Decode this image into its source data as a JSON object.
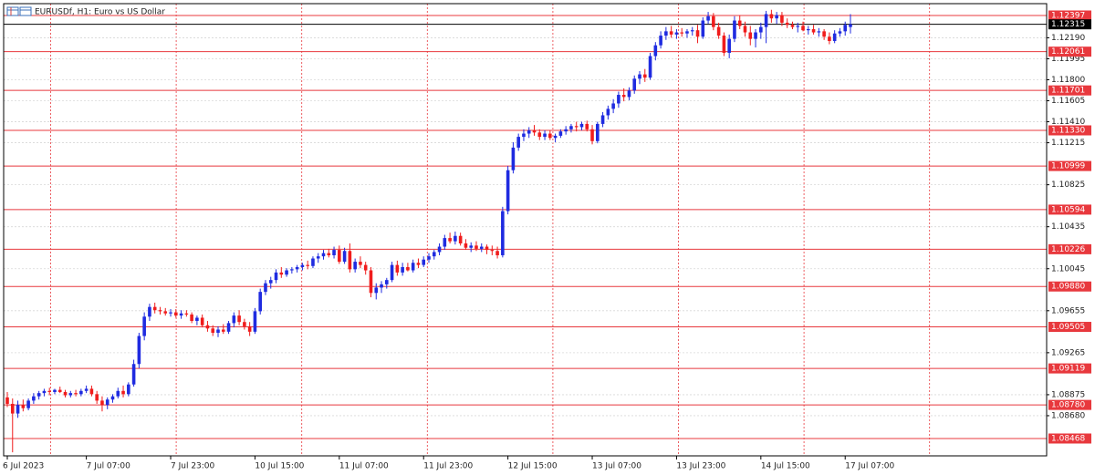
{
  "chart_data": {
    "type": "candlestick",
    "title": "EURUSDf, H1:  Euro vs US Dollar",
    "up_color": "#1f2be0",
    "down_color": "#f01c1c",
    "level_color": "#e8383d",
    "current_color": "#000000",
    "grid": true,
    "ylim": [
      1.08307,
      1.12507
    ],
    "yticks": [
      {
        "value": 1.1219,
        "label": "1.12190"
      },
      {
        "value": 1.11995,
        "label": "1.11995"
      },
      {
        "value": 1.118,
        "label": "1.11800"
      },
      {
        "value": 1.11605,
        "label": "1.11605"
      },
      {
        "value": 1.1141,
        "label": "1.11410"
      },
      {
        "value": 1.11215,
        "label": "1.11215"
      },
      {
        "value": 1.10825,
        "label": "1.10825"
      },
      {
        "value": 1.10435,
        "label": "1.10435"
      },
      {
        "value": 1.10045,
        "label": "1.10045"
      },
      {
        "value": 1.09655,
        "label": "1.09655"
      },
      {
        "value": 1.09265,
        "label": "1.09265"
      },
      {
        "value": 1.08875,
        "label": "1.08875"
      },
      {
        "value": 1.0868,
        "label": "1.08680"
      }
    ],
    "levels": [
      {
        "value": 1.12397,
        "label": "1.12397"
      },
      {
        "value": 1.12061,
        "label": "1.12061"
      },
      {
        "value": 1.11701,
        "label": "1.11701"
      },
      {
        "value": 1.1133,
        "label": "1.11330"
      },
      {
        "value": 1.10999,
        "label": "1.10999"
      },
      {
        "value": 1.10594,
        "label": "1.10594"
      },
      {
        "value": 1.10226,
        "label": "1.10226"
      },
      {
        "value": 1.0988,
        "label": "1.09880"
      },
      {
        "value": 1.09505,
        "label": "1.09505"
      },
      {
        "value": 1.09119,
        "label": "1.09119"
      },
      {
        "value": 1.0878,
        "label": "1.08780"
      },
      {
        "value": 1.08468,
        "label": "1.08468"
      }
    ],
    "current_price": {
      "value": 1.12315,
      "label": "1.12315"
    },
    "categories": [
      "6 Jul 2023",
      null,
      null,
      null,
      null,
      null,
      null,
      null,
      null,
      null,
      null,
      null,
      null,
      null,
      null,
      "7 Jul 07:00",
      null,
      null,
      null,
      null,
      null,
      null,
      null,
      null,
      null,
      null,
      null,
      null,
      null,
      null,
      null,
      "7 Jul 23:00",
      null,
      null,
      null,
      null,
      null,
      null,
      null,
      null,
      null,
      null,
      null,
      null,
      null,
      null,
      null,
      "10 Jul 15:00",
      null,
      null,
      null,
      null,
      null,
      null,
      null,
      null,
      null,
      null,
      null,
      null,
      null,
      null,
      null,
      "11 Jul 07:00",
      null,
      null,
      null,
      null,
      null,
      null,
      null,
      null,
      null,
      null,
      null,
      null,
      null,
      null,
      null,
      "11 Jul 23:00",
      null,
      null,
      null,
      null,
      null,
      null,
      null,
      null,
      null,
      null,
      null,
      null,
      null,
      null,
      null,
      "12 Jul 15:00",
      null,
      null,
      null,
      null,
      null,
      null,
      null,
      null,
      null,
      null,
      null,
      null,
      null,
      null,
      null,
      "13 Jul 07:00",
      null,
      null,
      null,
      null,
      null,
      null,
      null,
      null,
      null,
      null,
      null,
      null,
      null,
      null,
      null,
      "13 Jul 23:00",
      null,
      null,
      null,
      null,
      null,
      null,
      null,
      null,
      null,
      null,
      null,
      null,
      null,
      null,
      null,
      "14 Jul 15:00",
      null,
      null,
      null,
      null,
      null,
      null,
      null,
      null,
      null,
      null,
      null,
      null,
      null,
      null,
      null,
      "17 Jul 07:00",
      null
    ],
    "ohlc": [
      [
        1.0885,
        1.089,
        1.0876,
        1.0879
      ],
      [
        1.0879,
        1.0884,
        1.0834,
        1.087
      ],
      [
        1.087,
        1.0882,
        1.0866,
        1.0878
      ],
      [
        1.0878,
        1.0883,
        1.0872,
        1.0875
      ],
      [
        1.0875,
        1.0884,
        1.0873,
        1.0882
      ],
      [
        1.0882,
        1.0889,
        1.0879,
        1.0886
      ],
      [
        1.0886,
        1.0891,
        1.0883,
        1.0889
      ],
      [
        1.0889,
        1.0893,
        1.0886,
        1.0891
      ],
      [
        1.0891,
        1.0894,
        1.0887,
        1.089
      ],
      [
        1.089,
        1.0893,
        1.0888,
        1.0892
      ],
      [
        1.0892,
        1.0895,
        1.0889,
        1.089
      ],
      [
        1.089,
        1.0892,
        1.0885,
        1.0887
      ],
      [
        1.0887,
        1.0891,
        1.0885,
        1.0889
      ],
      [
        1.0889,
        1.0892,
        1.0886,
        1.0888
      ],
      [
        1.0888,
        1.0893,
        1.0886,
        1.0891
      ],
      [
        1.0891,
        1.0896,
        1.0889,
        1.0893
      ],
      [
        1.0893,
        1.0896,
        1.0886,
        1.0888
      ],
      [
        1.0888,
        1.0891,
        1.0879,
        1.0882
      ],
      [
        1.0882,
        1.0886,
        1.0872,
        1.0878
      ],
      [
        1.0878,
        1.0885,
        1.0874,
        1.0883
      ],
      [
        1.0883,
        1.0888,
        1.088,
        1.0886
      ],
      [
        1.0886,
        1.0894,
        1.0884,
        1.0891
      ],
      [
        1.0891,
        1.0896,
        1.0885,
        1.0888
      ],
      [
        1.0888,
        1.0899,
        1.0886,
        1.0897
      ],
      [
        1.0897,
        1.092,
        1.0895,
        1.0916
      ],
      [
        1.0916,
        1.0945,
        1.0912,
        1.0942
      ],
      [
        1.0942,
        1.0964,
        1.0938,
        1.096
      ],
      [
        1.096,
        1.0972,
        1.0956,
        1.0969
      ],
      [
        1.0969,
        1.0973,
        1.0963,
        1.0966
      ],
      [
        1.0966,
        1.0969,
        1.0962,
        1.0965
      ],
      [
        1.0965,
        1.0968,
        1.0961,
        1.0963
      ],
      [
        1.0963,
        1.0967,
        1.096,
        1.0964
      ],
      [
        1.0964,
        1.0967,
        1.0959,
        1.0961
      ],
      [
        1.0961,
        1.0966,
        1.0958,
        1.0963
      ],
      [
        1.0963,
        1.0966,
        1.096,
        1.0962
      ],
      [
        1.0962,
        1.0964,
        1.0954,
        1.0956
      ],
      [
        1.0956,
        1.0961,
        1.0952,
        1.0959
      ],
      [
        1.0959,
        1.0962,
        1.095,
        1.0952
      ],
      [
        1.0952,
        1.0956,
        1.0946,
        1.0949
      ],
      [
        1.0949,
        1.0952,
        1.0942,
        1.0945
      ],
      [
        1.0945,
        1.0951,
        1.0941,
        1.0948
      ],
      [
        1.0948,
        1.0953,
        1.0944,
        1.0946
      ],
      [
        1.0946,
        1.0956,
        1.0944,
        1.0954
      ],
      [
        1.0954,
        1.0964,
        1.095,
        1.0961
      ],
      [
        1.0961,
        1.0966,
        1.0952,
        1.0955
      ],
      [
        1.0955,
        1.0958,
        1.0948,
        1.0951
      ],
      [
        1.0951,
        1.0955,
        1.0942,
        1.0946
      ],
      [
        1.0946,
        1.0968,
        1.0944,
        1.0965
      ],
      [
        1.0965,
        1.0986,
        1.0962,
        1.0983
      ],
      [
        1.0983,
        1.0994,
        1.098,
        1.0991
      ],
      [
        1.0991,
        1.0997,
        1.0986,
        1.0994
      ],
      [
        1.0994,
        1.1004,
        1.0991,
        1.1001
      ],
      [
        1.1001,
        1.1006,
        1.0996,
        1.0999
      ],
      [
        1.0999,
        1.1005,
        1.0997,
        1.1003
      ],
      [
        1.1003,
        1.1006,
        1.1,
        1.1004
      ],
      [
        1.1004,
        1.1008,
        1.1001,
        1.1006
      ],
      [
        1.1006,
        1.101,
        1.1003,
        1.1008
      ],
      [
        1.1008,
        1.1012,
        1.1004,
        1.1007
      ],
      [
        1.1007,
        1.1016,
        1.1005,
        1.1014
      ],
      [
        1.1014,
        1.1019,
        1.101,
        1.1016
      ],
      [
        1.1016,
        1.1022,
        1.1013,
        1.1019
      ],
      [
        1.1019,
        1.1023,
        1.1015,
        1.1017
      ],
      [
        1.1017,
        1.1025,
        1.1014,
        1.1022
      ],
      [
        1.1022,
        1.1026,
        1.1009,
        1.1011
      ],
      [
        1.1011,
        1.1024,
        1.1009,
        1.1021
      ],
      [
        1.1021,
        1.1028,
        1.1001,
        1.1004
      ],
      [
        1.1004,
        1.1014,
        1.1001,
        1.1011
      ],
      [
        1.1011,
        1.1016,
        1.1005,
        1.1008
      ],
      [
        1.1008,
        1.1011,
        1.0999,
        1.1003
      ],
      [
        1.1003,
        1.1006,
        1.0978,
        1.0982
      ],
      [
        1.0982,
        1.0991,
        1.0976,
        1.0987
      ],
      [
        1.0987,
        1.0993,
        1.0982,
        1.099
      ],
      [
        1.099,
        1.0996,
        1.0986,
        1.0994
      ],
      [
        1.0994,
        1.1011,
        1.0992,
        1.1008
      ],
      [
        1.1008,
        1.1012,
        1.0998,
        1.1001
      ],
      [
        1.1001,
        1.101,
        1.0998,
        1.1006
      ],
      [
        1.1006,
        1.101,
        1.1002,
        1.1003
      ],
      [
        1.1003,
        1.1013,
        1.1001,
        1.101
      ],
      [
        1.101,
        1.1014,
        1.1005,
        1.1008
      ],
      [
        1.1008,
        1.1016,
        1.1006,
        1.1013
      ],
      [
        1.1013,
        1.1019,
        1.101,
        1.1016
      ],
      [
        1.1016,
        1.1022,
        1.1013,
        1.102
      ],
      [
        1.102,
        1.1028,
        1.1017,
        1.1025
      ],
      [
        1.1025,
        1.1036,
        1.1022,
        1.1033
      ],
      [
        1.1033,
        1.1038,
        1.1028,
        1.103
      ],
      [
        1.103,
        1.1039,
        1.1027,
        1.1035
      ],
      [
        1.1035,
        1.1038,
        1.1026,
        1.1028
      ],
      [
        1.1028,
        1.1032,
        1.1022,
        1.1024
      ],
      [
        1.1024,
        1.1029,
        1.102,
        1.1026
      ],
      [
        1.1026,
        1.103,
        1.1021,
        1.1023
      ],
      [
        1.1023,
        1.1028,
        1.102,
        1.1025
      ],
      [
        1.1025,
        1.1027,
        1.1018,
        1.1022
      ],
      [
        1.1022,
        1.1026,
        1.1017,
        1.1021
      ],
      [
        1.1021,
        1.1025,
        1.1014,
        1.1017
      ],
      [
        1.1017,
        1.1062,
        1.1015,
        1.1058
      ],
      [
        1.1058,
        1.11,
        1.1055,
        1.1096
      ],
      [
        1.1096,
        1.1122,
        1.1093,
        1.1117
      ],
      [
        1.1117,
        1.113,
        1.1114,
        1.1127
      ],
      [
        1.1127,
        1.1134,
        1.1123,
        1.113
      ],
      [
        1.113,
        1.1136,
        1.1126,
        1.1133
      ],
      [
        1.1133,
        1.1138,
        1.1128,
        1.1131
      ],
      [
        1.1131,
        1.1134,
        1.1124,
        1.1127
      ],
      [
        1.1127,
        1.1133,
        1.1124,
        1.113
      ],
      [
        1.113,
        1.1133,
        1.1124,
        1.1126
      ],
      [
        1.1126,
        1.113,
        1.1122,
        1.1128
      ],
      [
        1.1128,
        1.1134,
        1.1126,
        1.1132
      ],
      [
        1.1132,
        1.1137,
        1.1129,
        1.1134
      ],
      [
        1.1134,
        1.1139,
        1.1131,
        1.1137
      ],
      [
        1.1137,
        1.1141,
        1.1132,
        1.1136
      ],
      [
        1.1136,
        1.1141,
        1.1133,
        1.1139
      ],
      [
        1.1139,
        1.1142,
        1.1132,
        1.1134
      ],
      [
        1.1134,
        1.1138,
        1.112,
        1.1123
      ],
      [
        1.1123,
        1.1141,
        1.1121,
        1.1139
      ],
      [
        1.1139,
        1.115,
        1.1136,
        1.1147
      ],
      [
        1.1147,
        1.1156,
        1.1143,
        1.1153
      ],
      [
        1.1153,
        1.1162,
        1.1149,
        1.1158
      ],
      [
        1.1158,
        1.1169,
        1.1154,
        1.1166
      ],
      [
        1.1166,
        1.1172,
        1.116,
        1.1164
      ],
      [
        1.1164,
        1.1173,
        1.1161,
        1.117
      ],
      [
        1.117,
        1.1184,
        1.1167,
        1.1181
      ],
      [
        1.1181,
        1.1188,
        1.1176,
        1.1185
      ],
      [
        1.1185,
        1.119,
        1.1178,
        1.1182
      ],
      [
        1.1182,
        1.1205,
        1.118,
        1.1202
      ],
      [
        1.1202,
        1.1215,
        1.1198,
        1.1212
      ],
      [
        1.1212,
        1.1225,
        1.1209,
        1.1221
      ],
      [
        1.1221,
        1.1229,
        1.1217,
        1.1225
      ],
      [
        1.1225,
        1.123,
        1.1219,
        1.1222
      ],
      [
        1.1222,
        1.1227,
        1.1218,
        1.1224
      ],
      [
        1.1224,
        1.1228,
        1.122,
        1.1223
      ],
      [
        1.1223,
        1.1227,
        1.1219,
        1.1225
      ],
      [
        1.1225,
        1.1229,
        1.1221,
        1.1226
      ],
      [
        1.1226,
        1.1231,
        1.1214,
        1.122
      ],
      [
        1.122,
        1.1238,
        1.1218,
        1.1235
      ],
      [
        1.1235,
        1.1243,
        1.1232,
        1.1239
      ],
      [
        1.1239,
        1.1242,
        1.1226,
        1.1229
      ],
      [
        1.1229,
        1.1233,
        1.1218,
        1.1221
      ],
      [
        1.1221,
        1.1224,
        1.1202,
        1.1205
      ],
      [
        1.1205,
        1.1222,
        1.12,
        1.1218
      ],
      [
        1.1218,
        1.1239,
        1.1215,
        1.1235
      ],
      [
        1.1235,
        1.124,
        1.1227,
        1.123
      ],
      [
        1.123,
        1.1234,
        1.122,
        1.1224
      ],
      [
        1.1224,
        1.123,
        1.1212,
        1.1218
      ],
      [
        1.1218,
        1.1227,
        1.121,
        1.1224
      ],
      [
        1.1224,
        1.1233,
        1.1218,
        1.1229
      ],
      [
        1.1229,
        1.1244,
        1.1214,
        1.1241
      ],
      [
        1.1241,
        1.1245,
        1.1233,
        1.1237
      ],
      [
        1.1237,
        1.1243,
        1.1232,
        1.124
      ],
      [
        1.124,
        1.1243,
        1.123,
        1.1233
      ],
      [
        1.1233,
        1.1237,
        1.1228,
        1.1231
      ],
      [
        1.1231,
        1.1234,
        1.1227,
        1.1229
      ],
      [
        1.1229,
        1.1233,
        1.1224,
        1.123
      ],
      [
        1.123,
        1.1234,
        1.1225,
        1.1226
      ],
      [
        1.1226,
        1.123,
        1.1222,
        1.1227
      ],
      [
        1.1227,
        1.1231,
        1.1222,
        1.1224
      ],
      [
        1.1224,
        1.1228,
        1.122,
        1.1225
      ],
      [
        1.1225,
        1.1227,
        1.1217,
        1.122
      ],
      [
        1.122,
        1.1224,
        1.1213,
        1.1216
      ],
      [
        1.1216,
        1.1226,
        1.1214,
        1.1223
      ],
      [
        1.1223,
        1.1228,
        1.122,
        1.1225
      ],
      [
        1.1225,
        1.1234,
        1.1221,
        1.1231
      ],
      [
        1.1229,
        1.1241,
        1.1223,
        1.12315
      ]
    ]
  }
}
